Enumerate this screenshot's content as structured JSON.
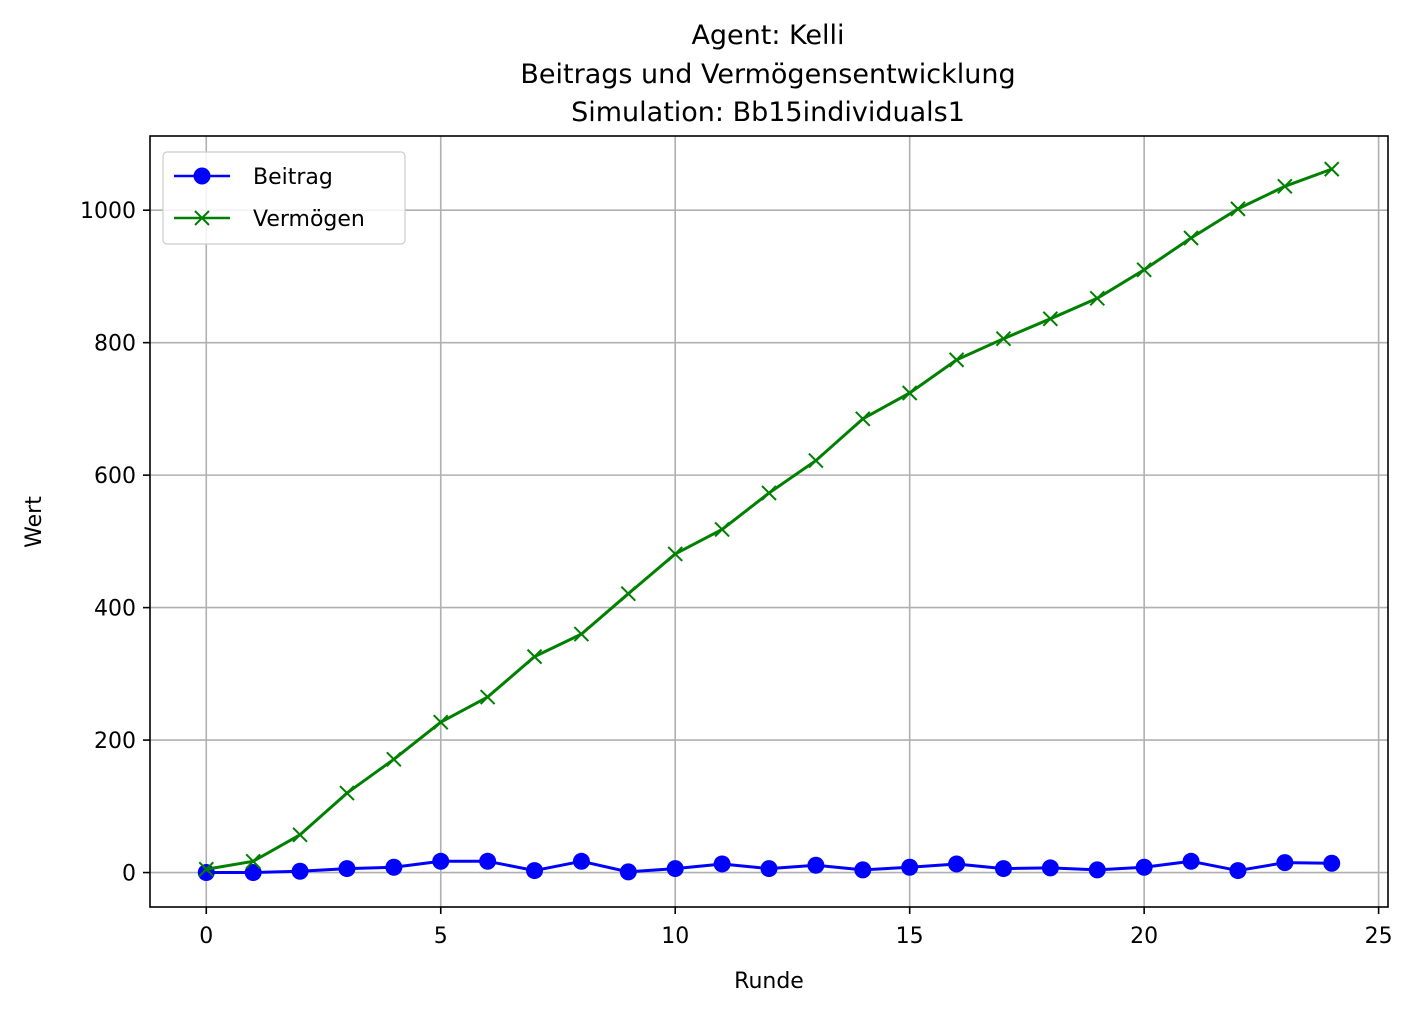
{
  "chart_data": {
    "type": "line",
    "title_lines": [
      "Agent: Kelli",
      "Beitrags und Vermögensentwicklung",
      "Simulation: Bb15individuals1"
    ],
    "xlabel": "Runde",
    "ylabel": "Wert",
    "xlim": [
      -1.2,
      25.2
    ],
    "ylim": [
      -52,
      1112
    ],
    "xticks": [
      0,
      5,
      10,
      15,
      20,
      25
    ],
    "yticks": [
      0,
      200,
      400,
      600,
      800,
      1000
    ],
    "grid": true,
    "legend_position": "upper-left",
    "x": [
      0,
      1,
      2,
      3,
      4,
      5,
      6,
      7,
      8,
      9,
      10,
      11,
      12,
      13,
      14,
      15,
      16,
      17,
      18,
      19,
      20,
      21,
      22,
      23,
      24
    ],
    "series": [
      {
        "name": "Beitrag",
        "color": "#0000ff",
        "marker": "circle",
        "values": [
          0,
          0,
          2,
          6,
          8,
          17,
          17,
          3,
          17,
          1,
          6,
          13,
          6,
          11,
          4,
          8,
          13,
          6,
          7,
          4,
          8,
          17,
          3,
          15,
          14
        ]
      },
      {
        "name": "Vermögen",
        "color": "#008000",
        "marker": "x",
        "values": [
          5,
          17,
          57,
          120,
          171,
          227,
          265,
          326,
          360,
          421,
          481,
          518,
          573,
          622,
          685,
          724,
          774,
          806,
          836,
          867,
          910,
          958,
          1002,
          1036,
          1062
        ]
      }
    ]
  }
}
